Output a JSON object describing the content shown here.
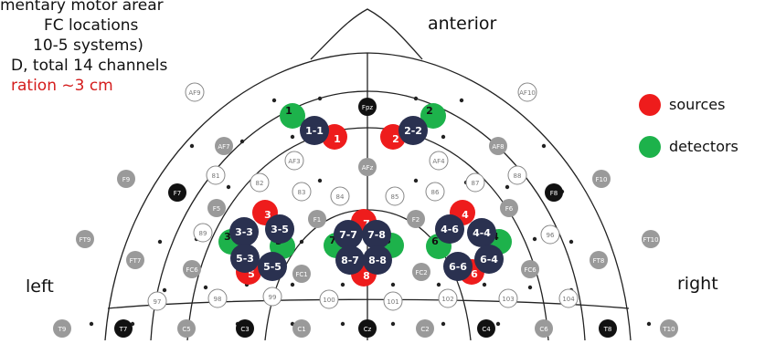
{
  "caption": [
    {
      "text": "mentary motor arear",
      "color": "#111111"
    },
    {
      "text": "FC locations",
      "color": "#111111"
    },
    {
      "text": "10-5 systems)",
      "color": "#111111"
    },
    {
      "text": "D, total 14 channels",
      "color": "#111111"
    },
    {
      "text": "ration ~3 cm",
      "color": "#d41c1c"
    }
  ],
  "directions": {
    "anterior": "anterior",
    "left": "left",
    "right": "right"
  },
  "legend": {
    "sources": {
      "label": "sources",
      "color": "#ee1c1c"
    },
    "detectors": {
      "label": "detectors",
      "color": "#1db24b"
    }
  },
  "colors": {
    "source": "#ee1c1c",
    "detector": "#1db24b",
    "channel": "#2a3150",
    "electrode_gray": "#9a9a9a",
    "electrode_black": "#111111"
  },
  "electrodes": {
    "Fpz": "Fpz",
    "AF9": "AF9",
    "AF10": "AF10",
    "AF7": "AF7",
    "AF8": "AF8",
    "AF3": "AF3",
    "AFz": "AFz",
    "AF4": "AF4",
    "F9": "F9",
    "F10": "F10",
    "F7": "F7",
    "F8": "F8",
    "n81": "81",
    "n82": "82",
    "n83": "83",
    "n84": "84",
    "n85": "85",
    "n86": "86",
    "n87": "87",
    "n88": "88",
    "F5": "F5",
    "F1": "F1",
    "F2": "F2",
    "F6": "F6",
    "FT9": "FT9",
    "FT10": "FT10",
    "n89": "89",
    "n96": "96",
    "FT7": "FT7",
    "FT8": "FT8",
    "FC6L": "FC6",
    "FC1": "FC1",
    "FC2": "FC2",
    "FC6R": "FC6",
    "n97": "97",
    "n98": "98",
    "n99": "99",
    "n100": "100",
    "n101": "101",
    "n102": "102",
    "n103": "103",
    "n104": "104",
    "T9": "T9",
    "T7": "T7",
    "C5": "C5",
    "C3": "C3",
    "C1": "C1",
    "Cz": "Cz",
    "C2": "C2",
    "C4": "C4",
    "C6": "C6",
    "T8": "T8",
    "T10": "T10"
  },
  "optodes": {
    "s1": "1",
    "s2": "2",
    "s3": "3",
    "s4": "4",
    "s5a": "5",
    "s5b": "5",
    "s6a": "6",
    "s6b": "6",
    "s7": "7",
    "s8": "8",
    "d1": "1",
    "d2": "2",
    "d3": "3",
    "d4": "4",
    "d5": "5",
    "d6": "6",
    "d7": "7",
    "d8": "8"
  },
  "channels": {
    "c11": "1-1",
    "c22": "2-2",
    "c33": "3-3",
    "c35": "3-5",
    "c53": "5-3",
    "c55": "5-5",
    "c77": "7-7",
    "c78": "7-8",
    "c87": "8-7",
    "c88": "8-8",
    "c46": "4-6",
    "c44": "4-4",
    "c66": "6-6",
    "c64": "6-4"
  }
}
